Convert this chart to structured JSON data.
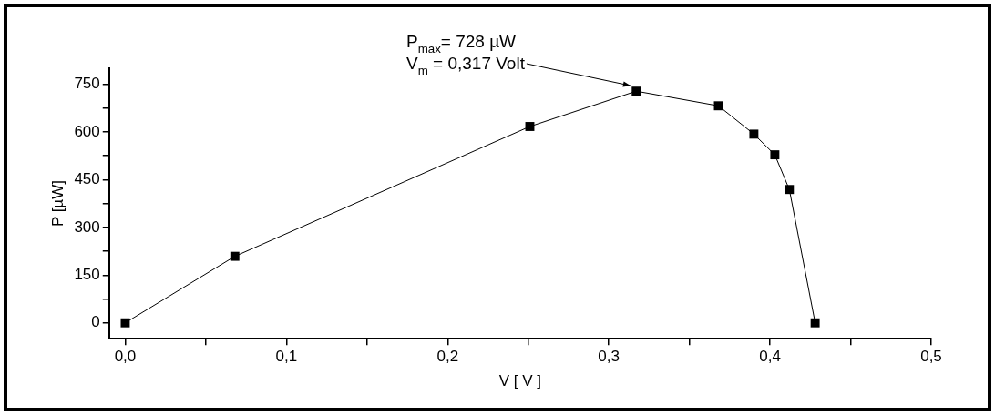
{
  "chart_data": {
    "type": "line",
    "xlabel": "V [ V ]",
    "ylabel": "P [µW]",
    "x": [
      0,
      0.068,
      0.251,
      0.317,
      0.368,
      0.39,
      0.403,
      0.412,
      0.428
    ],
    "series": [
      {
        "color": "#000000",
        "values": [
          0,
          209,
          617,
          728,
          682,
          593,
          528,
          419,
          0
        ]
      }
    ],
    "marker": "square",
    "line_style": "solid",
    "grid": false,
    "legend": false,
    "xlim": [
      -0.01,
      0.5
    ],
    "ylim": [
      -50,
      800
    ],
    "xticks": [
      {
        "value": 0,
        "label": "0,0"
      },
      {
        "value": 0.05,
        "label": null
      },
      {
        "value": 0.1,
        "label": "0,1"
      },
      {
        "value": 0.15,
        "label": null
      },
      {
        "value": 0.2,
        "label": "0,2"
      },
      {
        "value": 0.25,
        "label": null
      },
      {
        "value": 0.3,
        "label": "0,3"
      },
      {
        "value": 0.35,
        "label": null
      },
      {
        "value": 0.4,
        "label": "0,4"
      },
      {
        "value": 0.45,
        "label": null
      },
      {
        "value": 0.5,
        "label": "0,5"
      }
    ],
    "yticks": [
      0,
      {
        "value": 75,
        "label": null
      },
      150,
      {
        "value": 225,
        "label": null
      },
      300,
      {
        "value": 375,
        "label": null
      },
      450,
      {
        "value": 525,
        "label": null
      },
      600,
      {
        "value": 675,
        "label": null
      },
      750
    ],
    "annotations": [
      {
        "text": "P$_{max}$= 728 µW",
        "x": 0.317,
        "y": 728
      },
      "V$_{m}$ = 0,317 Volt"
    ]
  }
}
